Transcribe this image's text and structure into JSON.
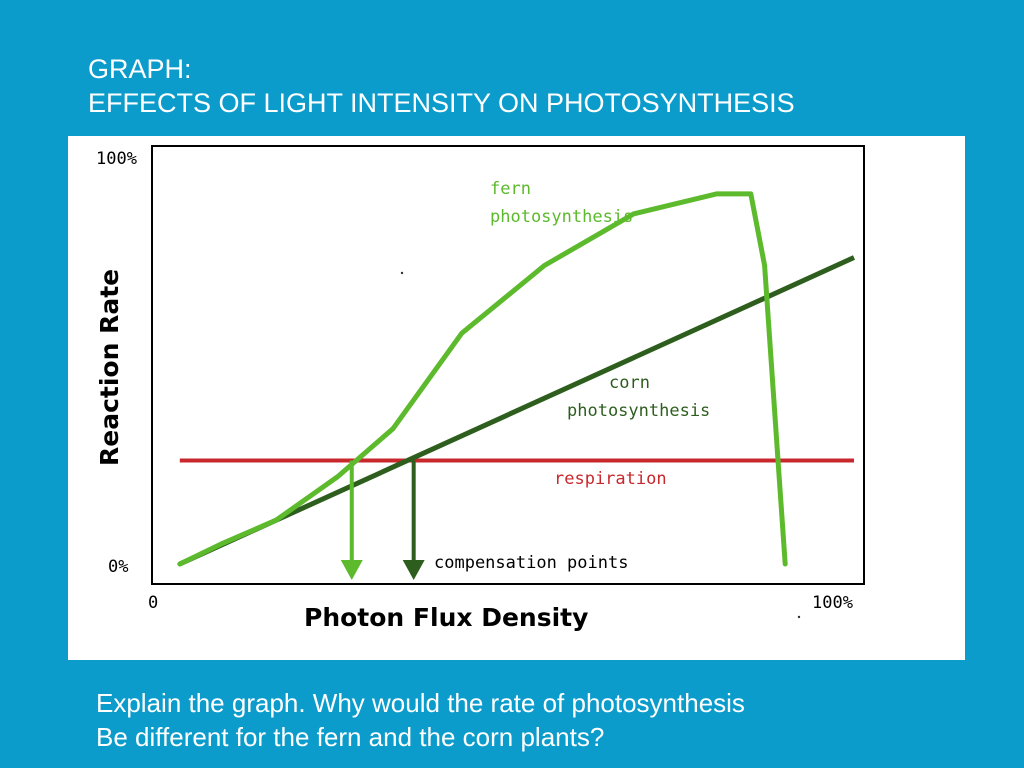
{
  "slide": {
    "title_line1": "GRAPH:",
    "title_line2": "EFFECTS OF LIGHT INTENSITY ON PHOTOSYNTHESIS",
    "question_line1": "Explain the graph. Why would the rate of photosynthesis",
    "question_line2": "Be different for the fern and the corn plants?"
  },
  "colors": {
    "background": "#0b9ccc",
    "fern": "#5cba2c",
    "corn": "#2e5e1e",
    "respiration": "#c8282c",
    "text": "#ffffff"
  },
  "chart_data": {
    "type": "line",
    "title": "",
    "xlabel": "Photon Flux Density",
    "ylabel": "Reaction Rate",
    "xlim": [
      0,
      100
    ],
    "ylim": [
      0,
      100
    ],
    "x_tick_labels": [
      "0",
      "100%"
    ],
    "y_tick_labels": [
      "0%",
      "100%"
    ],
    "grid": false,
    "series": [
      {
        "name_line1": "fern",
        "name_line2": "photosynthesis",
        "color": "#5cba2c",
        "points": [
          [
            2,
            0
          ],
          [
            8,
            5
          ],
          [
            16,
            11
          ],
          [
            25,
            22
          ],
          [
            33,
            34
          ],
          [
            43,
            58
          ],
          [
            55,
            75
          ],
          [
            68,
            88
          ],
          [
            80,
            93
          ],
          [
            85,
            93
          ],
          [
            87,
            75
          ],
          [
            89,
            25
          ],
          [
            90,
            0
          ]
        ]
      },
      {
        "name_line1": "corn",
        "name_line2": "photosynthesis",
        "color": "#2e5e1e",
        "points": [
          [
            2,
            0
          ],
          [
            100,
            77
          ]
        ]
      },
      {
        "name_line1": "respiration",
        "name_line2": "",
        "color": "#c8282c",
        "points": [
          [
            2,
            26
          ],
          [
            100,
            26
          ]
        ]
      }
    ],
    "annotations": {
      "compensation_label": "compensation points",
      "compensation_x": [
        27,
        36
      ]
    }
  }
}
